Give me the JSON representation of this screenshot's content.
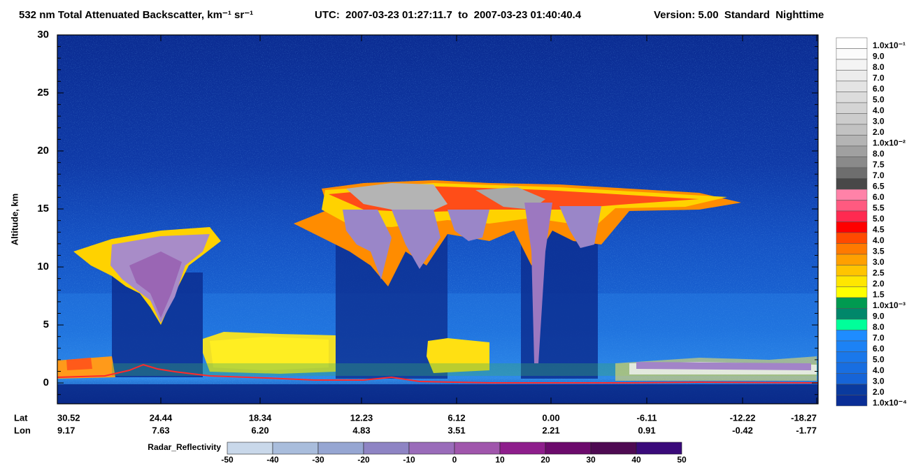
{
  "chart_data": {
    "type": "heatmap",
    "title": "532 nm Total Attenuated Backscatter, km⁻¹ sr⁻¹",
    "time_range": "UTC:  2007-03-23 01:27:11.7  to  2007-03-23 01:40:40.4",
    "version": "Version: 5.00  Standard  Nighttime",
    "y_label": "Altitude, km",
    "ylim": [
      -1.8,
      30
    ],
    "yticks": [
      0,
      5,
      10,
      15,
      20,
      25,
      30
    ],
    "x_rows": [
      {
        "name": "Lat",
        "labels": [
          "30.52",
          "24.44",
          "18.34",
          "12.23",
          "6.12",
          "0.00",
          "-6.11",
          "-12.22",
          "-18.27"
        ]
      },
      {
        "name": "Lon",
        "labels": [
          "9.17",
          "7.63",
          "6.20",
          "4.83",
          "3.51",
          "2.21",
          "0.91",
          "-0.42",
          "-1.77"
        ]
      }
    ],
    "colorbar": {
      "labels": [
        "1.0x10⁻¹",
        "9.0",
        "8.0",
        "7.0",
        "6.0",
        "5.0",
        "4.0",
        "3.0",
        "2.0",
        "1.0x10⁻²",
        "8.0",
        "7.5",
        "7.0",
        "6.5",
        "6.0",
        "5.5",
        "5.0",
        "4.5",
        "4.0",
        "3.5",
        "3.0",
        "2.5",
        "2.0",
        "1.5",
        "1.0x10⁻³",
        "9.0",
        "8.0",
        "7.0",
        "6.0",
        "5.0",
        "4.0",
        "3.0",
        "2.0",
        "1.0x10⁻⁴"
      ],
      "colors": [
        "#ffffff",
        "#fbfbfb",
        "#f4f4f4",
        "#ececec",
        "#e4e4e4",
        "#dcdcdc",
        "#d4d4d4",
        "#cccccc",
        "#c2c2c2",
        "#b4b4b4",
        "#a0a0a0",
        "#8a8a8a",
        "#6e6e6e",
        "#484848",
        "#ff82a8",
        "#ff5a80",
        "#ff2a50",
        "#ff0000",
        "#ff4a00",
        "#ff7a00",
        "#ffa000",
        "#ffc400",
        "#ffe600",
        "#ffff00",
        "#009a50",
        "#00876a",
        "#00ff9a",
        "#1e8cff",
        "#1c82f5",
        "#1a78eb",
        "#186ee1",
        "#1664d7",
        "#0a3a9e",
        "#0a2e96"
      ]
    },
    "radar_colorbar": {
      "label": "Radar_Reflectivity",
      "ticks": [
        -50,
        -40,
        -30,
        -20,
        -10,
        0,
        10,
        20,
        30,
        40,
        50
      ],
      "colors": [
        "#c9d8ea",
        "#a9bddc",
        "#96a6d2",
        "#8e84c4",
        "#9a6cba",
        "#a056ac",
        "#8e1e8c",
        "#6c0a6c",
        "#4e0a52",
        "#3a0a7a"
      ]
    }
  }
}
